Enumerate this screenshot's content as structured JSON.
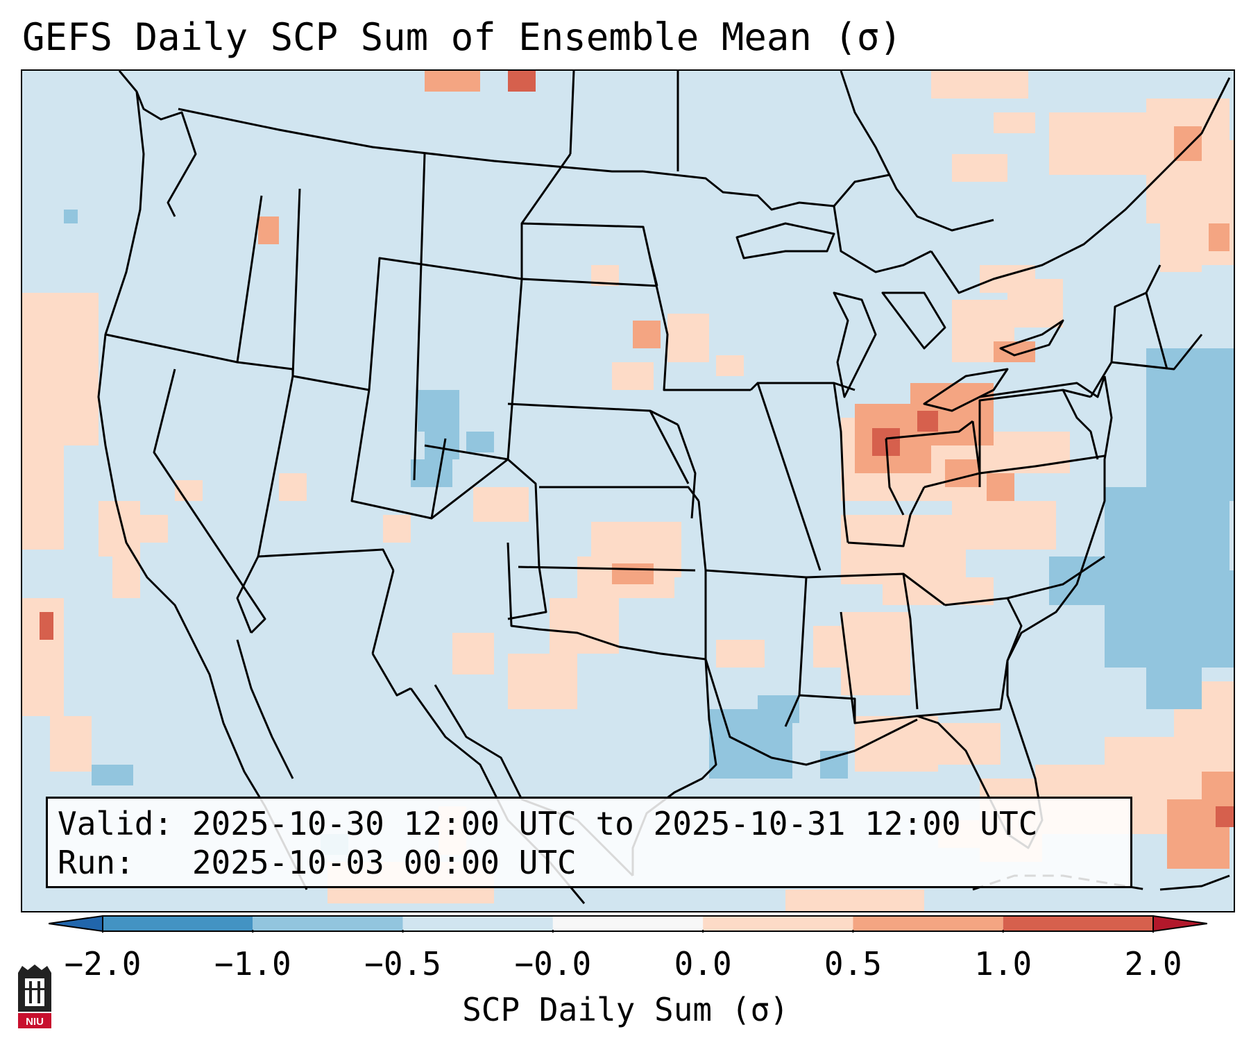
{
  "title": "GEFS Daily SCP Sum of Ensemble Mean (σ)",
  "info": {
    "valid_line": "Valid: 2025-10-30 12:00 UTC to 2025-10-31 12:00 UTC",
    "run_line": "Run:   2025-10-03 00:00 UTC"
  },
  "colorbar": {
    "label": "SCP Daily Sum (σ)",
    "ticks": [
      "−2.0",
      "−1.0",
      "−0.5",
      "−0.0",
      "0.0",
      "0.5",
      "1.0",
      "2.0"
    ],
    "segment_colors": [
      "#2166ac",
      "#4393c3",
      "#92c5de",
      "#d1e5f0",
      "#f7f7f7",
      "#fddbc7",
      "#f4a582",
      "#d6604d",
      "#b2182b"
    ]
  },
  "colors": {
    "background": "#d1e5f0",
    "neg_light": "#92c5de",
    "pos_light": "#fddbc7",
    "pos_mid": "#f4a582",
    "pos_high": "#d6604d",
    "state_lines": "#000000"
  },
  "map": {
    "region": "Continental United States",
    "icon": "map-icon"
  },
  "logo": {
    "text": "NIU",
    "icon": "niu-logo-icon"
  },
  "chart_data": {
    "type": "heatmap",
    "title": "GEFS Daily SCP Sum of Ensemble Mean (σ)",
    "variable": "SCP Daily Sum (σ)",
    "bounds": [
      -2.0,
      -1.0,
      -0.5,
      -0.0,
      0.0,
      0.5,
      1.0,
      2.0
    ],
    "extend": "both",
    "notable_regions": [
      {
        "area": "Kentucky / southern Indiana / Ohio Valley",
        "range": "0.5 to 1.0+"
      },
      {
        "area": "West Virginia / southern Ohio",
        "range": "0.5 to 1.0"
      },
      {
        "area": "Great Lakes / New York / New England",
        "range": "0.0 to 1.0"
      },
      {
        "area": "Colorado",
        "range": "-1.0 to -0.5"
      },
      {
        "area": "Western Atlantic off East Coast",
        "range": "-1.0 to -0.5"
      },
      {
        "area": "Gulf of Mexico",
        "range": "-1.0 to -0.5"
      },
      {
        "area": "Greater Antilles / Caribbean",
        "range": "0.5 to 1.0"
      }
    ]
  }
}
